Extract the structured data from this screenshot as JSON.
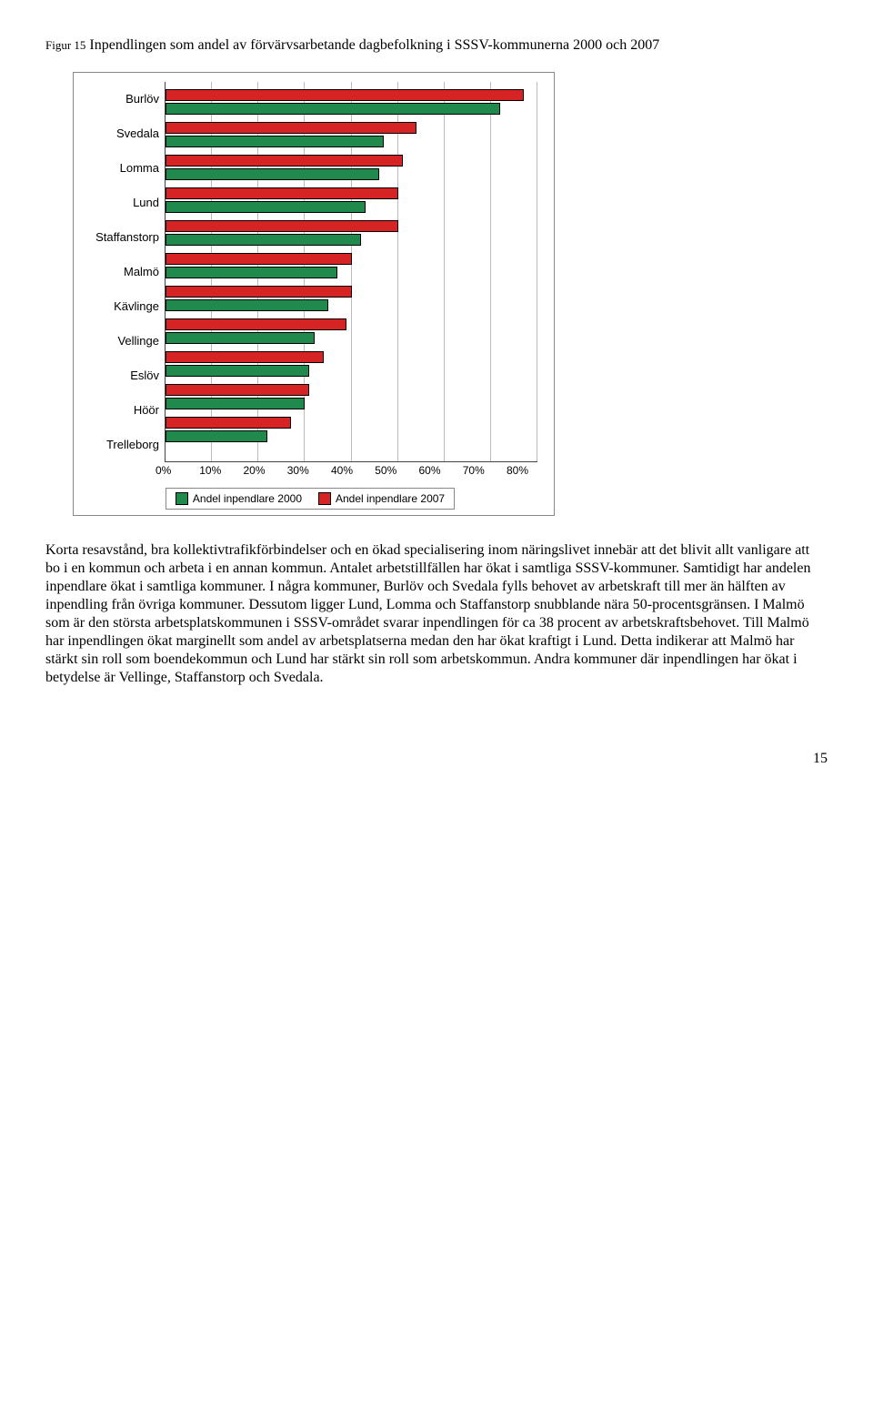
{
  "figure": {
    "prefix": "Figur 15",
    "title_rest": " Inpendlingen som andel av förvärvsarbetande dagbefolkning i SSSV-kommunerna 2000 och 2007",
    "x_ticks": [
      "0%",
      "10%",
      "20%",
      "30%",
      "40%",
      "50%",
      "60%",
      "70%",
      "80%"
    ],
    "x_max": 80,
    "color_2000": "#1f8a4c",
    "color_2007": "#d62424",
    "legend_2000": "Andel inpendlare 2000",
    "legend_2007": "Andel inpendlare 2007",
    "categories": [
      {
        "label": "Burlöv",
        "v2000": 72,
        "v2007": 77
      },
      {
        "label": "Svedala",
        "v2000": 47,
        "v2007": 54
      },
      {
        "label": "Lomma",
        "v2000": 46,
        "v2007": 51
      },
      {
        "label": "Lund",
        "v2000": 43,
        "v2007": 50
      },
      {
        "label": "Staffanstorp",
        "v2000": 42,
        "v2007": 50
      },
      {
        "label": "Malmö",
        "v2000": 37,
        "v2007": 40
      },
      {
        "label": "Kävlinge",
        "v2000": 35,
        "v2007": 40
      },
      {
        "label": "Vellinge",
        "v2000": 32,
        "v2007": 39
      },
      {
        "label": "Eslöv",
        "v2000": 31,
        "v2007": 34
      },
      {
        "label": "Höör",
        "v2000": 30,
        "v2007": 31
      },
      {
        "label": "Trelleborg",
        "v2000": 22,
        "v2007": 27
      }
    ]
  },
  "paragraph": "Korta resavstånd, bra kollektivtrafikförbindelser och en ökad specialisering inom näringslivet innebär att det blivit allt vanligare att bo i en kommun och arbeta i en annan kommun. Antalet arbetstillfällen har ökat i samtliga SSSV-kommuner. Samtidigt har andelen inpendlare ökat i samtliga kommuner. I några kommuner, Burlöv och Svedala fylls behovet av arbetskraft till mer än hälften av inpendling från övriga kommuner. Dessutom ligger Lund, Lomma och Staffanstorp snubblande nära 50-procentsgränsen. I Malmö som är den största arbetsplatskommunen i SSSV-området svarar inpendlingen för ca 38 procent av arbetskraftsbehovet. Till Malmö har inpendlingen ökat marginellt som andel av arbetsplatserna medan den har ökat kraftigt i Lund. Detta indikerar att Malmö har stärkt sin roll som boendekommun och Lund har stärkt sin roll som arbetskommun. Andra kommuner där inpendlingen har ökat i betydelse är Vellinge, Staffanstorp och Svedala.",
  "page_number": "15"
}
